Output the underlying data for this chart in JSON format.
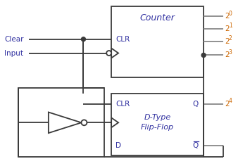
{
  "fig_width": 3.55,
  "fig_height": 2.36,
  "dpi": 100,
  "bg_color": "#ffffff",
  "line_color": "#3a3a3a",
  "text_blue": "#3030a0",
  "text_orange": "#cc6600",
  "counter_title": "Counter",
  "counter_clr": "CLR",
  "ff_clr": "CLR",
  "ff_q": "Q",
  "ff_qbar": "Q",
  "ff_dtype1": "D-Type",
  "ff_dtype2": "Flip-Flop",
  "ff_d": "D",
  "clear_lbl": "Clear",
  "input_lbl": "Input"
}
